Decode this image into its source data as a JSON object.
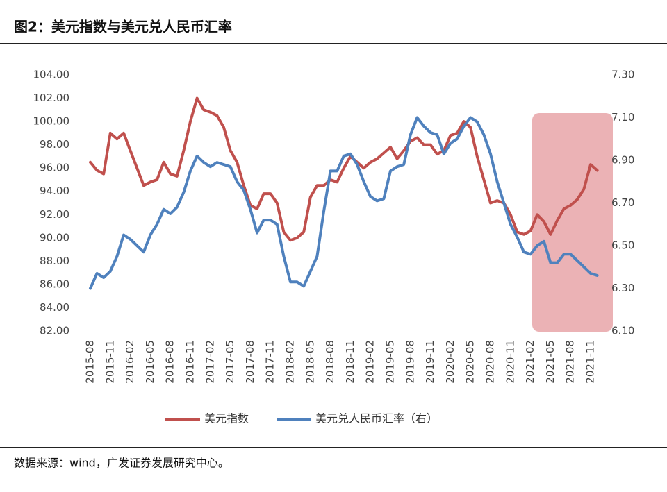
{
  "chart_data": {
    "type": "line",
    "title": "图2：美元指数与美元兑人民币汇率",
    "source": "数据来源：wind，广发证券发展研究中心。",
    "categories": [
      "2015-08",
      null,
      null,
      "2015-11",
      null,
      null,
      "2016-02",
      null,
      null,
      "2016-05",
      null,
      null,
      "2016-08",
      null,
      null,
      "2016-11",
      null,
      null,
      "2017-02",
      null,
      null,
      "2017-05",
      null,
      null,
      "2017-08",
      null,
      null,
      "2017-11",
      null,
      null,
      "2018-02",
      null,
      null,
      "2018-05",
      null,
      null,
      "2018-08",
      null,
      null,
      "2018-11",
      null,
      null,
      "2019-02",
      null,
      null,
      "2019-05",
      null,
      null,
      "2019-08",
      null,
      null,
      "2019-11",
      null,
      null,
      "2020-02",
      null,
      null,
      "2020-05",
      null,
      null,
      "2020-08",
      null,
      null,
      "2020-11",
      null,
      null,
      "2021-02",
      null,
      null,
      "2021-05",
      null,
      null,
      "2021-08",
      null,
      null,
      "2021-11",
      null
    ],
    "series": [
      {
        "name": "美元指数",
        "color": "#c0504d",
        "values": [
          96.5,
          95.8,
          95.5,
          99.0,
          98.5,
          99.0,
          97.5,
          96.0,
          94.5,
          94.8,
          95.0,
          96.5,
          95.5,
          95.3,
          97.5,
          100.0,
          102.0,
          101.0,
          100.8,
          100.5,
          99.5,
          97.5,
          96.5,
          94.5,
          92.8,
          92.5,
          93.8,
          93.8,
          93.0,
          90.5,
          89.8,
          90.0,
          90.5,
          93.5,
          94.5,
          94.5,
          95.0,
          94.8,
          96.0,
          97.0,
          96.5,
          96.0,
          96.5,
          96.8,
          97.3,
          97.8,
          96.8,
          97.5,
          98.3,
          98.6,
          98.0,
          98.0,
          97.2,
          97.5,
          98.8,
          99.0,
          100.0,
          99.5,
          97.0,
          95.0,
          93.0,
          93.2,
          93.0,
          92.0,
          90.5,
          90.3,
          90.6,
          92.0,
          91.4,
          90.3,
          91.5,
          92.5,
          92.8,
          93.3,
          94.2,
          96.3,
          95.8
        ]
      },
      {
        "name": "美元兑人民币汇率（右）",
        "color": "#4f81bd",
        "axis": "y2",
        "values": [
          6.3,
          6.37,
          6.35,
          6.38,
          6.45,
          6.55,
          6.53,
          6.5,
          6.47,
          6.55,
          6.6,
          6.67,
          6.65,
          6.68,
          6.75,
          6.85,
          6.92,
          6.89,
          6.87,
          6.89,
          6.88,
          6.87,
          6.8,
          6.76,
          6.67,
          6.56,
          6.62,
          6.62,
          6.6,
          6.45,
          6.33,
          6.33,
          6.31,
          6.38,
          6.45,
          6.66,
          6.85,
          6.85,
          6.92,
          6.93,
          6.88,
          6.8,
          6.73,
          6.71,
          6.72,
          6.85,
          6.87,
          6.88,
          7.02,
          7.1,
          7.06,
          7.03,
          7.02,
          6.93,
          6.98,
          7.0,
          7.06,
          7.1,
          7.08,
          7.02,
          6.93,
          6.8,
          6.7,
          6.6,
          6.54,
          6.47,
          6.46,
          6.5,
          6.52,
          6.42,
          6.42,
          6.46,
          6.46,
          6.43,
          6.4,
          6.37,
          6.36
        ]
      }
    ],
    "ylim": [
      82,
      104
    ],
    "yticks": [
      {
        "value": 82,
        "label": "82.00"
      },
      {
        "value": 84,
        "label": "84.00"
      },
      {
        "value": 86,
        "label": "86.00"
      },
      {
        "value": 88,
        "label": "88.00"
      },
      {
        "value": 90,
        "label": "90.00"
      },
      {
        "value": 92,
        "label": "92.00"
      },
      {
        "value": 94,
        "label": "94.00"
      },
      {
        "value": 96,
        "label": "96.00"
      },
      {
        "value": 98,
        "label": "98.00"
      },
      {
        "value": 100,
        "label": "100.00"
      },
      {
        "value": 102,
        "label": "102.00"
      },
      {
        "value": 104,
        "label": "104.00"
      }
    ],
    "y2lim": [
      6.1,
      7.3
    ],
    "y2ticks": [
      {
        "value": 6.1,
        "label": "6.10"
      },
      {
        "value": 6.3,
        "label": "6.30"
      },
      {
        "value": 6.5,
        "label": "6.50"
      },
      {
        "value": 6.7,
        "label": "6.70"
      },
      {
        "value": 6.9,
        "label": "6.90"
      },
      {
        "value": 7.1,
        "label": "7.10"
      },
      {
        "value": 7.3,
        "label": "7.30"
      }
    ],
    "legend": "bottom"
  }
}
